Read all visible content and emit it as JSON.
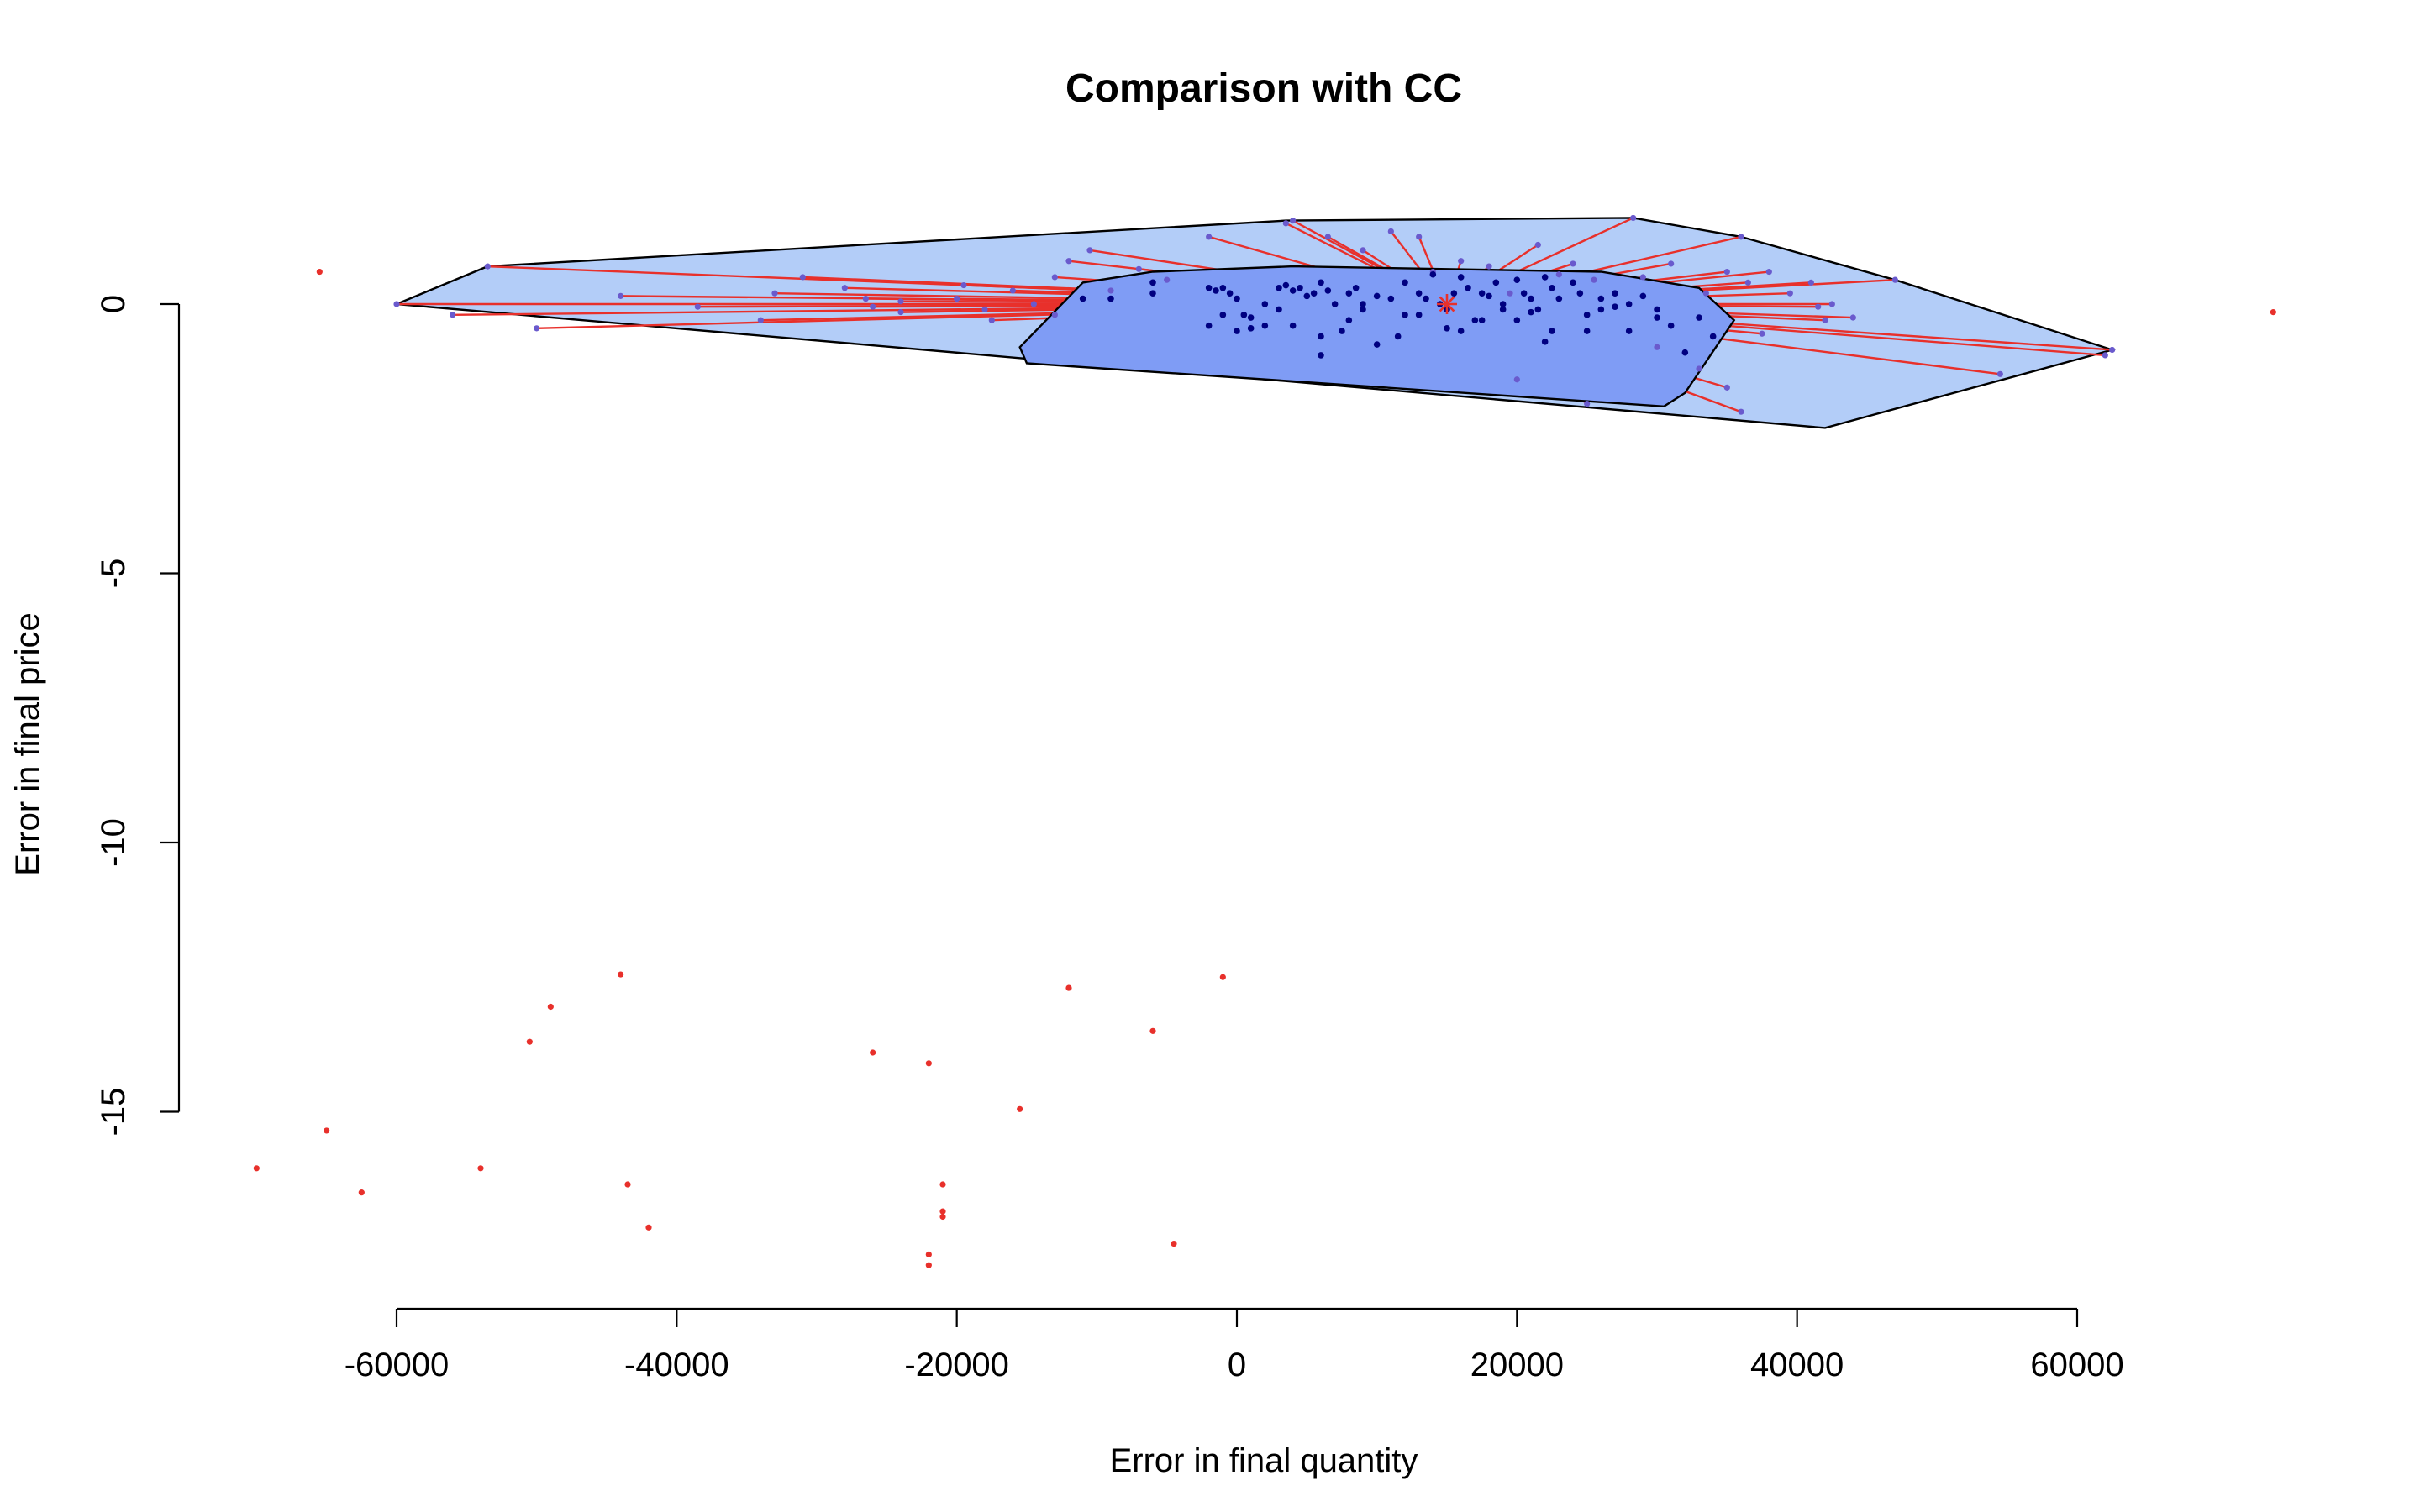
{
  "chart_data": {
    "type": "scatter",
    "subtype": "bagplot",
    "title": "Comparison with CC",
    "xlabel": "Error in final quantity",
    "ylabel": "Error in final price",
    "xlim": [
      -75000,
      75000
    ],
    "ylim": [
      -18.5,
      2.5
    ],
    "x_ticks": [
      -60000,
      -40000,
      -20000,
      0,
      20000,
      40000,
      60000
    ],
    "y_ticks": [
      0,
      -5,
      -10,
      -15
    ],
    "grid": false,
    "legend": "none",
    "colors": {
      "bag": "#7f9cf5",
      "loop": "#b3cdf8",
      "whisker": "#e8302b",
      "inner_points": "#000080",
      "loop_points": "#6a5acd",
      "outliers": "#e8302b"
    },
    "center": [
      15000,
      0.0
    ],
    "bag": [
      [
        -15500,
        -0.8
      ],
      [
        -11000,
        0.4
      ],
      [
        -6000,
        0.6
      ],
      [
        4000,
        0.7
      ],
      [
        15000,
        0.65
      ],
      [
        26000,
        0.6
      ],
      [
        33000,
        0.3
      ],
      [
        35500,
        -0.3
      ],
      [
        32000,
        -1.65
      ],
      [
        30500,
        -1.9
      ],
      [
        -15000,
        -1.1
      ]
    ],
    "loop": [
      [
        -60000,
        0.0
      ],
      [
        -53500,
        0.7
      ],
      [
        3500,
        1.55
      ],
      [
        28300,
        1.6
      ],
      [
        36000,
        1.25
      ],
      [
        47000,
        0.45
      ],
      [
        62500,
        -0.85
      ],
      [
        42000,
        -2.3
      ],
      [
        -60000,
        0.0
      ]
    ],
    "inner_points": {
      "x": [
        -11000,
        -9000,
        -6000,
        -6000,
        -2000,
        -1500,
        -1000,
        -500,
        0,
        500,
        1000,
        2000,
        3000,
        3500,
        4000,
        4500,
        5000,
        5500,
        6000,
        6500,
        7000,
        8000,
        8500,
        9000,
        10000,
        11000,
        12000,
        13000,
        13500,
        14000,
        14500,
        15000,
        15500,
        16000,
        16500,
        17000,
        17500,
        18000,
        18500,
        19000,
        20000,
        20500,
        21000,
        21500,
        22000,
        22500,
        23000,
        24000,
        24500,
        25000,
        26000,
        27000,
        28000,
        29000,
        30000,
        31000,
        32000,
        -2000,
        0,
        2000,
        4000,
        6000,
        8000,
        10000,
        13000,
        16000,
        19000,
        22000,
        25000,
        28000,
        33000,
        34000,
        26000,
        20000,
        12000,
        6000,
        1000,
        -1000,
        3000,
        9000,
        15000,
        21000,
        27000,
        30000,
        22500,
        17500,
        11500,
        7500
      ],
      "y": [
        0.1,
        0.1,
        0.4,
        0.2,
        0.3,
        0.25,
        0.3,
        0.2,
        0.1,
        -0.2,
        -0.25,
        0.0,
        0.3,
        0.35,
        0.25,
        0.3,
        0.15,
        0.2,
        0.4,
        0.25,
        0.0,
        0.2,
        0.3,
        0.0,
        0.15,
        0.1,
        0.4,
        0.2,
        0.1,
        0.55,
        0.0,
        -0.1,
        0.2,
        0.5,
        0.3,
        -0.3,
        0.2,
        0.15,
        0.4,
        0.0,
        0.45,
        0.2,
        0.1,
        -0.1,
        0.5,
        0.3,
        0.1,
        0.4,
        0.2,
        -0.5,
        0.1,
        0.2,
        0.0,
        0.15,
        -0.1,
        -0.4,
        -0.9,
        -0.4,
        -0.5,
        -0.4,
        -0.4,
        -0.95,
        -0.3,
        -0.75,
        -0.2,
        -0.5,
        -0.1,
        -0.7,
        -0.2,
        -0.5,
        -0.25,
        -0.6,
        -0.1,
        -0.3,
        -0.2,
        -0.6,
        -0.45,
        -0.2,
        -0.1,
        -0.1,
        -0.45,
        -0.15,
        -0.05,
        -0.25,
        -0.5,
        -0.3,
        -0.6,
        -0.5
      ]
    },
    "loop_points": {
      "x": [
        -60000,
        -53500,
        -50000,
        -38500,
        -34000,
        -33000,
        -31000,
        -26500,
        -26000,
        -24000,
        -19500,
        -18000,
        -17500,
        -16000,
        -14500,
        -13000,
        -12000,
        -10500,
        -9000,
        -7000,
        -5000,
        -2000,
        3500,
        4000,
        6500,
        9000,
        11000,
        13000,
        14000,
        16000,
        18000,
        19500,
        21500,
        24000,
        25500,
        28300,
        29000,
        31000,
        33500,
        35000,
        36000,
        36500,
        37500,
        38000,
        39500,
        41000,
        41500,
        42000,
        42500,
        44000,
        47000,
        54500,
        62000,
        62500,
        36000,
        35000,
        33000,
        30000,
        25000,
        20000,
        23000,
        -13000,
        -20000,
        -24000,
        -28000,
        -44000,
        -56000
      ],
      "y": [
        0.0,
        0.7,
        -0.45,
        -0.05,
        -0.3,
        0.2,
        0.5,
        0.1,
        -0.05,
        0.05,
        0.35,
        -0.1,
        -0.3,
        0.25,
        0.0,
        0.5,
        0.8,
        1.0,
        0.25,
        0.65,
        0.45,
        1.25,
        1.5,
        1.55,
        1.25,
        1.0,
        1.35,
        1.25,
        0.6,
        0.8,
        0.7,
        0.2,
        1.1,
        0.75,
        0.45,
        1.6,
        0.5,
        0.75,
        0.2,
        0.6,
        1.25,
        0.4,
        -0.55,
        0.6,
        0.2,
        0.4,
        -0.05,
        -0.3,
        0.0,
        -0.25,
        0.45,
        -1.3,
        -0.95,
        -0.85,
        -2.0,
        -1.55,
        -1.2,
        -0.8,
        -1.85,
        -1.4,
        0.55,
        -0.2,
        0.1,
        -0.15,
        0.3,
        0.15,
        -0.2
      ]
    },
    "outliers": {
      "x": [
        -65500,
        74000,
        -44000,
        -49000,
        -50500,
        -26000,
        -22000,
        -12000,
        -1000,
        -6000,
        -15500,
        -65000,
        -70000,
        -54000,
        -62500,
        -43500,
        -42000,
        -21000,
        -21000,
        -21000,
        -22000,
        -22000,
        -4500
      ],
      "y": [
        0.6,
        -0.15,
        -12.45,
        -13.05,
        -13.7,
        -13.9,
        -14.1,
        -12.7,
        -12.5,
        -13.5,
        -14.95,
        -15.35,
        -16.05,
        -16.05,
        -16.5,
        -16.35,
        -17.15,
        -16.35,
        -16.85,
        -16.95,
        -17.65,
        -17.85,
        -17.45
      ]
    }
  }
}
